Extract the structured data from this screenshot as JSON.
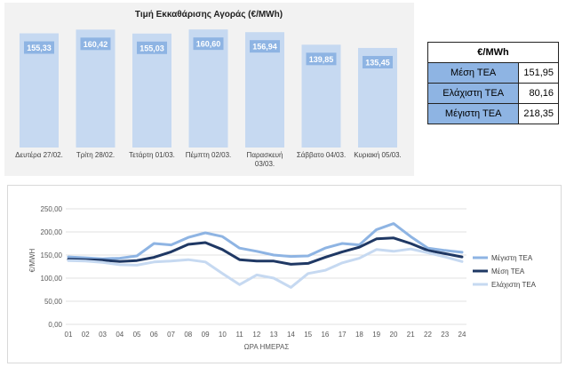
{
  "chart_data": [
    {
      "type": "bar",
      "title": "Τιμή Εκκαθάρισης Αγοράς (€/MWh)",
      "categories": [
        "Δευτέρα 27/02.",
        "Τρίτη 28/02.",
        "Τετάρτη 01/03.",
        "Πέμπτη 02/03.",
        "Παρασκευή 03/03.",
        "Σάββατο 04/03.",
        "Κυριακή 05/03."
      ],
      "category_lines": [
        [
          "Δευτέρα 27/02."
        ],
        [
          "Τρίτη 28/02."
        ],
        [
          "Τετάρτη 01/03."
        ],
        [
          "Πέμπτη 02/03."
        ],
        [
          "Παρασκευή",
          "03/03."
        ],
        [
          "Σάββατο 04/03."
        ],
        [
          "Κυριακή 05/03."
        ]
      ],
      "values": [
        155.33,
        160.42,
        155.03,
        160.6,
        156.94,
        139.85,
        135.45
      ],
      "labels": [
        "155,33",
        "160,42",
        "155,03",
        "160,60",
        "156,94",
        "139,85",
        "135,45"
      ],
      "color": "#c6d9f1",
      "label_bg": "#8eb4e3",
      "background": "#f2f2f2"
    },
    {
      "type": "line",
      "x": [
        "01",
        "02",
        "03",
        "04",
        "05",
        "06",
        "07",
        "08",
        "09",
        "10",
        "11",
        "12",
        "13",
        "14",
        "15",
        "16",
        "17",
        "18",
        "19",
        "20",
        "21",
        "22",
        "23",
        "24"
      ],
      "xlabel": "ΩΡΑ ΗΜΕΡΑΣ",
      "ylabel": "€/MWH",
      "ylim": [
        0,
        250
      ],
      "yticks": [
        "0,00",
        "50,00",
        "100,00",
        "150,00",
        "200,00",
        "250,00"
      ],
      "grid": true,
      "legend": "right",
      "series": [
        {
          "name": "Μέγιστη ΤΕΑ",
          "color": "#8eb4e3",
          "values": [
            146,
            144,
            142,
            143,
            148,
            175,
            172,
            188,
            198,
            190,
            165,
            158,
            150,
            147,
            148,
            165,
            175,
            172,
            205,
            218,
            190,
            165,
            160,
            156
          ]
        },
        {
          "name": "Μέση ΤΕΑ",
          "color": "#1f3864",
          "values": [
            141,
            140,
            139,
            136,
            138,
            145,
            157,
            173,
            177,
            162,
            140,
            137,
            137,
            130,
            132,
            145,
            157,
            167,
            185,
            187,
            175,
            160,
            153,
            146
          ]
        },
        {
          "name": "Ελάχιστη ΤΕΑ",
          "color": "#c6d9f1",
          "values": [
            138,
            137,
            134,
            129,
            128,
            135,
            137,
            140,
            135,
            110,
            86,
            107,
            100,
            80,
            110,
            117,
            133,
            143,
            162,
            158,
            163,
            155,
            146,
            136
          ]
        }
      ]
    }
  ],
  "table": {
    "header": "€/MWh",
    "rows": [
      {
        "label": "Μέση ΤΕΑ",
        "value": "151,95"
      },
      {
        "label": "Ελάχιστη ΤΕΑ",
        "value": "80,16"
      },
      {
        "label": "Μέγιστη ΤΕΑ",
        "value": "218,35"
      }
    ]
  }
}
